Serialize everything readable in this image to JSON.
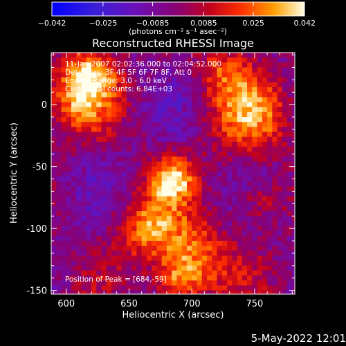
{
  "chart_data": {
    "type": "heatmap",
    "title": "Reconstructed RHESSI Image",
    "xlabel": "Heliocentric X (arcsec)",
    "ylabel": "Heliocentric Y (arcsec)",
    "xlim": [
      588,
      782
    ],
    "ylim": [
      -153,
      42
    ],
    "x_ticks": [
      600,
      650,
      700,
      750
    ],
    "y_ticks": [
      0,
      -50,
      -100,
      -150
    ],
    "annotations": [
      "11-Jan-2007 02:02:36.000 to 02:04:52.000",
      "Detectors: 3F 4F 5F 6F 7F 8F, Att 0",
      "Energy Range: 3.0 - 6.0 keV",
      "Clean     Total counts: 6.84E+03"
    ],
    "peak_label": "Position of Peak = [684,-59]",
    "peak": [
      684,
      -59
    ],
    "colorbar": {
      "min": -0.042,
      "max": 0.042,
      "tick_values": [
        -0.042,
        -0.025,
        -0.0085,
        0.0085,
        0.025,
        0.042
      ],
      "tick_labels": [
        "−0.042",
        "−0.025",
        "−0.0085",
        "0.0085",
        "0.025",
        "0.042"
      ],
      "unit_label": "(photons cm⁻² s⁻¹ asec⁻²)"
    },
    "sources": [
      {
        "x": 684,
        "y": -60,
        "sigma": 12,
        "amp": 0.04
      },
      {
        "x": 665,
        "y": -98,
        "sigma": 18,
        "amp": 0.03
      },
      {
        "x": 700,
        "y": -125,
        "sigma": 22,
        "amp": 0.032
      },
      {
        "x": 610,
        "y": 5,
        "sigma": 20,
        "amp": 0.031
      },
      {
        "x": 620,
        "y": 28,
        "sigma": 14,
        "amp": 0.026
      },
      {
        "x": 745,
        "y": -10,
        "sigma": 22,
        "amp": 0.03
      },
      {
        "x": 755,
        "y": -78,
        "sigma": 13,
        "amp": 0.02
      },
      {
        "x": 725,
        "y": 28,
        "sigma": 16,
        "amp": 0.022
      },
      {
        "x": 690,
        "y": -142,
        "sigma": 12,
        "amp": 0.024
      }
    ]
  },
  "footer": {
    "date": "5-May-2022 12:01"
  }
}
